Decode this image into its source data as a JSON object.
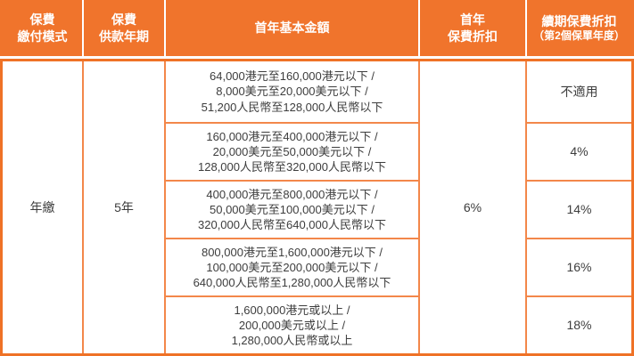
{
  "colors": {
    "header_bg": "#F0742C",
    "grid_line": "#F3874A",
    "outer_border": "#EF7226",
    "body_text": "#3D3D3D",
    "header_text": "#FFFFFF"
  },
  "header": {
    "payment_mode": [
      "保費",
      "繳付模式"
    ],
    "payment_term": [
      "保費",
      "供款年期"
    ],
    "base_amount": "首年基本金額",
    "first_year_discount": [
      "首年",
      "保費折扣"
    ],
    "renewal_discount_title": "續期保費折扣",
    "renewal_discount_subtitle": "（第2個保單年度）"
  },
  "body": {
    "payment_mode": "年繳",
    "payment_term": "5年",
    "first_year_discount": "6%",
    "rows": [
      {
        "amounts": [
          "64,000港元至160,000港元以下 /",
          "8,000美元至20,000美元以下 /",
          "51,200人民幣至128,000人民幣以下"
        ],
        "renewal_discount": "不適用"
      },
      {
        "amounts": [
          "160,000港元至400,000港元以下 /",
          "20,000美元至50,000美元以下 /",
          "128,000人民幣至320,000人民幣以下"
        ],
        "renewal_discount": "4%"
      },
      {
        "amounts": [
          "400,000港元至800,000港元以下 /",
          "50,000美元至100,000美元以下 /",
          "320,000人民幣至640,000人民幣以下"
        ],
        "renewal_discount": "14%"
      },
      {
        "amounts": [
          "800,000港元至1,600,000港元以下 /",
          "100,000美元至200,000美元以下 /",
          "640,000人民幣至1,280,000人民幣以下"
        ],
        "renewal_discount": "16%"
      },
      {
        "amounts": [
          "1,600,000港元或以上 /",
          "200,000美元或以上 /",
          "1,280,000人民幣或以上"
        ],
        "renewal_discount": "18%"
      }
    ]
  }
}
